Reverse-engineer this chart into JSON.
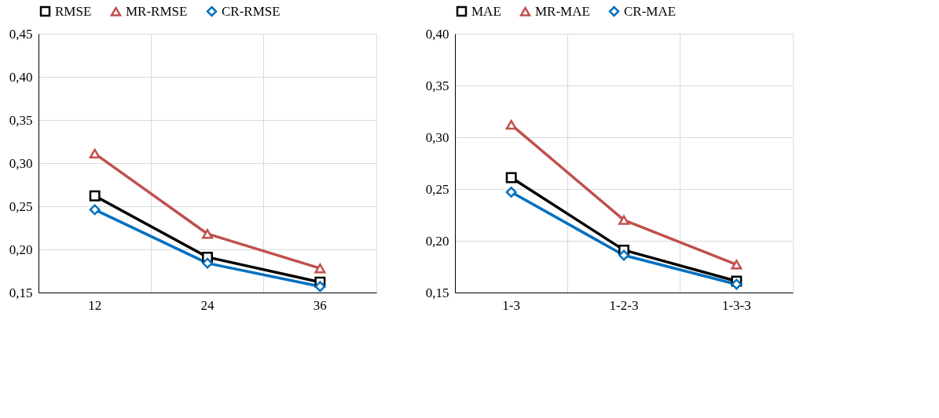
{
  "chart_data": [
    {
      "type": "line",
      "categories": [
        "12",
        "24",
        "36"
      ],
      "ylim": [
        0.15,
        0.45
      ],
      "yticks": [
        {
          "value": 0.15,
          "label": "0,15"
        },
        {
          "value": 0.2,
          "label": "0,20"
        },
        {
          "value": 0.25,
          "label": "0,25"
        },
        {
          "value": 0.3,
          "label": "0,30"
        },
        {
          "value": 0.35,
          "label": "0,35"
        },
        {
          "value": 0.4,
          "label": "0,40"
        },
        {
          "value": 0.45,
          "label": "0,45"
        }
      ],
      "grid": true,
      "legend": "top",
      "line_style": "solid",
      "series": [
        {
          "name": "RMSE",
          "color": "#000000",
          "marker": "square",
          "values": [
            0.262,
            0.191,
            0.162
          ]
        },
        {
          "name": "MR-RMSE",
          "color": "#c0504d",
          "marker": "triangle",
          "values": [
            0.311,
            0.218,
            0.178
          ]
        },
        {
          "name": "CR-RMSE",
          "color": "#0070c0",
          "marker": "diamond",
          "values": [
            0.246,
            0.184,
            0.157
          ]
        }
      ]
    },
    {
      "type": "line",
      "categories": [
        "1-3",
        "1-2-3",
        "1-3-3"
      ],
      "ylim": [
        0.15,
        0.4
      ],
      "yticks": [
        {
          "value": 0.15,
          "label": "0,15"
        },
        {
          "value": 0.2,
          "label": "0,20"
        },
        {
          "value": 0.25,
          "label": "0,25"
        },
        {
          "value": 0.3,
          "label": "0,30"
        },
        {
          "value": 0.35,
          "label": "0,35"
        },
        {
          "value": 0.4,
          "label": "0,40"
        }
      ],
      "grid": true,
      "legend": "top",
      "line_style": "solid",
      "series": [
        {
          "name": "MAE",
          "color": "#000000",
          "marker": "square",
          "values": [
            0.261,
            0.191,
            0.161
          ]
        },
        {
          "name": "MR-MAE",
          "color": "#c0504d",
          "marker": "triangle",
          "values": [
            0.312,
            0.22,
            0.177
          ]
        },
        {
          "name": "CR-MAE",
          "color": "#0070c0",
          "marker": "diamond",
          "values": [
            0.247,
            0.186,
            0.158
          ]
        }
      ]
    }
  ]
}
